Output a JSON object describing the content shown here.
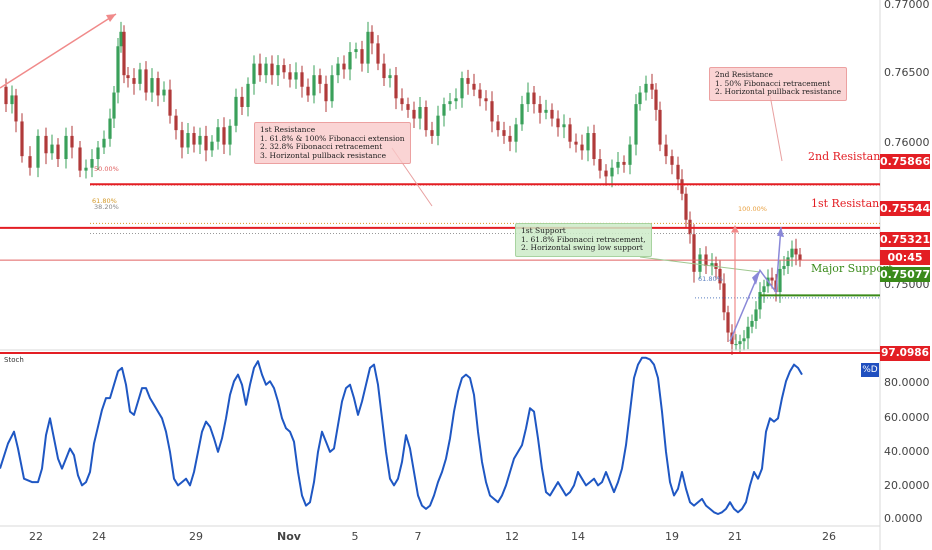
{
  "chart_data": [
    {
      "type": "candlestick",
      "xticks": [
        "22",
        "24",
        "29",
        "Nov",
        "5",
        "7",
        "12",
        "14",
        "19",
        "21",
        "26"
      ],
      "yticks": [
        "0.77000",
        "0.76500",
        "0.76000",
        "0.75500",
        "0.75000"
      ],
      "ylim": [
        0.7472,
        0.7712
      ],
      "grid": false,
      "levels": [
        {
          "name": "2nd Resistance",
          "value": "0.75866",
          "color": "#e31e24"
        },
        {
          "name": "1st Resistance",
          "value": "0.75544",
          "color": "#e31e24"
        },
        {
          "name": "Major Support",
          "value": "0.75077",
          "color": "#3a8a1a"
        }
      ],
      "last_price": "0.75321",
      "countdown": "00:45",
      "fib_labels": [
        "50.00%",
        "61.80%",
        "38.20%",
        "61.80%",
        "100.00%"
      ],
      "annotations": [
        {
          "lines": [
            "2nd Resistance",
            "1. 50% Fibonacci retracement",
            "2. Horizontal pullback resistance"
          ]
        },
        {
          "lines": [
            "1st Resistance",
            "1. 61.8% & 100% Fibonacci extension",
            "2. 32.8% Fibonacci retracement",
            "3. Horizontal pullback resistance"
          ]
        },
        {
          "lines": [
            "1st Support",
            "1. 61.8% Fibonacci retracement,",
            "2. Horizontal swing low support"
          ]
        }
      ],
      "close_path": [
        [
          0,
          0.7652
        ],
        [
          6,
          0.764
        ],
        [
          12,
          0.7646
        ],
        [
          16,
          0.7628
        ],
        [
          22,
          0.7604
        ],
        [
          30,
          0.7596
        ],
        [
          38,
          0.7618
        ],
        [
          46,
          0.7606
        ],
        [
          52,
          0.7612
        ],
        [
          58,
          0.7602
        ],
        [
          66,
          0.7618
        ],
        [
          72,
          0.761
        ],
        [
          80,
          0.7594
        ],
        [
          86,
          0.7596
        ],
        [
          92,
          0.7602
        ],
        [
          98,
          0.761
        ],
        [
          104,
          0.7616
        ],
        [
          110,
          0.763
        ],
        [
          114,
          0.7648
        ],
        [
          118,
          0.768
        ],
        [
          121,
          0.769
        ],
        [
          124,
          0.766
        ],
        [
          128,
          0.7658
        ],
        [
          134,
          0.7654
        ],
        [
          140,
          0.7664
        ],
        [
          146,
          0.7648
        ],
        [
          152,
          0.7658
        ],
        [
          158,
          0.7646
        ],
        [
          164,
          0.765
        ],
        [
          170,
          0.7632
        ],
        [
          176,
          0.7622
        ],
        [
          182,
          0.761
        ],
        [
          188,
          0.762
        ],
        [
          194,
          0.7612
        ],
        [
          200,
          0.7618
        ],
        [
          206,
          0.7608
        ],
        [
          212,
          0.7614
        ],
        [
          218,
          0.7624
        ],
        [
          224,
          0.7612
        ],
        [
          230,
          0.7625
        ],
        [
          236,
          0.7645
        ],
        [
          242,
          0.7638
        ],
        [
          248,
          0.7654
        ],
        [
          254,
          0.7668
        ],
        [
          260,
          0.766
        ],
        [
          266,
          0.7668
        ],
        [
          272,
          0.766
        ],
        [
          278,
          0.7667
        ],
        [
          284,
          0.7662
        ],
        [
          290,
          0.7657
        ],
        [
          296,
          0.7662
        ],
        [
          302,
          0.7652
        ],
        [
          308,
          0.7646
        ],
        [
          314,
          0.766
        ],
        [
          320,
          0.7654
        ],
        [
          326,
          0.7642
        ],
        [
          332,
          0.766
        ],
        [
          338,
          0.7668
        ],
        [
          344,
          0.7664
        ],
        [
          350,
          0.7676
        ],
        [
          356,
          0.7678
        ],
        [
          362,
          0.7668
        ],
        [
          368,
          0.769
        ],
        [
          372,
          0.7682
        ],
        [
          378,
          0.7668
        ],
        [
          384,
          0.7658
        ],
        [
          390,
          0.766
        ],
        [
          396,
          0.7644
        ],
        [
          402,
          0.764
        ],
        [
          408,
          0.7636
        ],
        [
          414,
          0.763
        ],
        [
          420,
          0.7638
        ],
        [
          426,
          0.7622
        ],
        [
          432,
          0.7618
        ],
        [
          438,
          0.7632
        ],
        [
          444,
          0.764
        ],
        [
          450,
          0.7642
        ],
        [
          456,
          0.7644
        ],
        [
          462,
          0.7658
        ],
        [
          468,
          0.7654
        ],
        [
          474,
          0.765
        ],
        [
          480,
          0.7644
        ],
        [
          486,
          0.7642
        ],
        [
          492,
          0.7628
        ],
        [
          498,
          0.7622
        ],
        [
          504,
          0.7618
        ],
        [
          510,
          0.7614
        ],
        [
          516,
          0.7626
        ],
        [
          522,
          0.764
        ],
        [
          528,
          0.7648
        ],
        [
          534,
          0.764
        ],
        [
          540,
          0.7634
        ],
        [
          546,
          0.7636
        ],
        [
          552,
          0.763
        ],
        [
          558,
          0.7624
        ],
        [
          564,
          0.7626
        ],
        [
          570,
          0.7614
        ],
        [
          576,
          0.7612
        ],
        [
          582,
          0.7608
        ],
        [
          588,
          0.762
        ],
        [
          594,
          0.7602
        ],
        [
          600,
          0.7594
        ],
        [
          606,
          0.759
        ],
        [
          612,
          0.7596
        ],
        [
          618,
          0.76
        ],
        [
          624,
          0.7598
        ],
        [
          630,
          0.7612
        ],
        [
          636,
          0.764
        ],
        [
          640,
          0.7648
        ],
        [
          646,
          0.7654
        ],
        [
          652,
          0.765
        ],
        [
          656,
          0.7636
        ],
        [
          660,
          0.7612
        ],
        [
          666,
          0.7604
        ],
        [
          672,
          0.7598
        ],
        [
          678,
          0.7588
        ],
        [
          682,
          0.7578
        ],
        [
          686,
          0.756
        ],
        [
          690,
          0.755
        ],
        [
          694,
          0.7524
        ],
        [
          700,
          0.7536
        ],
        [
          706,
          0.7528
        ],
        [
          712,
          0.753
        ],
        [
          716,
          0.7526
        ],
        [
          720,
          0.7516
        ],
        [
          724,
          0.7496
        ],
        [
          728,
          0.7482
        ],
        [
          732,
          0.7474
        ],
        [
          736,
          0.7474
        ],
        [
          740,
          0.7476
        ],
        [
          744,
          0.7478
        ],
        [
          748,
          0.7486
        ],
        [
          752,
          0.749
        ],
        [
          756,
          0.7498
        ],
        [
          760,
          0.751
        ],
        [
          764,
          0.7514
        ],
        [
          768,
          0.752
        ],
        [
          772,
          0.7518
        ],
        [
          776,
          0.751
        ],
        [
          780,
          0.7526
        ],
        [
          784,
          0.7528
        ],
        [
          788,
          0.7534
        ],
        [
          792,
          0.754
        ],
        [
          796,
          0.7536
        ],
        [
          800,
          0.7532
        ]
      ]
    },
    {
      "type": "line",
      "title": "Stoch",
      "series_label": "%D",
      "yticks": [
        "97.0986",
        "80.0000",
        "60.0000",
        "40.0000",
        "20.0000",
        "0.0000"
      ],
      "ylim": [
        0,
        97.0986
      ],
      "overbought_label": "97.0986",
      "values": [
        [
          0,
          30
        ],
        [
          8,
          45
        ],
        [
          14,
          52
        ],
        [
          18,
          42
        ],
        [
          24,
          24
        ],
        [
          32,
          22
        ],
        [
          38,
          22
        ],
        [
          42,
          30
        ],
        [
          46,
          50
        ],
        [
          50,
          60
        ],
        [
          54,
          48
        ],
        [
          58,
          36
        ],
        [
          62,
          30
        ],
        [
          66,
          36
        ],
        [
          70,
          42
        ],
        [
          74,
          38
        ],
        [
          78,
          26
        ],
        [
          82,
          20
        ],
        [
          86,
          22
        ],
        [
          90,
          28
        ],
        [
          94,
          45
        ],
        [
          98,
          55
        ],
        [
          102,
          65
        ],
        [
          106,
          72
        ],
        [
          110,
          72
        ],
        [
          114,
          80
        ],
        [
          118,
          88
        ],
        [
          122,
          90
        ],
        [
          126,
          80
        ],
        [
          130,
          64
        ],
        [
          134,
          62
        ],
        [
          138,
          70
        ],
        [
          142,
          78
        ],
        [
          146,
          78
        ],
        [
          150,
          72
        ],
        [
          154,
          68
        ],
        [
          158,
          64
        ],
        [
          162,
          60
        ],
        [
          166,
          52
        ],
        [
          170,
          40
        ],
        [
          174,
          24
        ],
        [
          178,
          20
        ],
        [
          182,
          22
        ],
        [
          186,
          24
        ],
        [
          190,
          20
        ],
        [
          194,
          28
        ],
        [
          198,
          40
        ],
        [
          202,
          52
        ],
        [
          206,
          58
        ],
        [
          210,
          55
        ],
        [
          214,
          48
        ],
        [
          218,
          40
        ],
        [
          222,
          48
        ],
        [
          226,
          60
        ],
        [
          230,
          74
        ],
        [
          234,
          82
        ],
        [
          238,
          86
        ],
        [
          242,
          80
        ],
        [
          246,
          68
        ],
        [
          250,
          80
        ],
        [
          254,
          90
        ],
        [
          258,
          94
        ],
        [
          262,
          86
        ],
        [
          266,
          80
        ],
        [
          270,
          82
        ],
        [
          274,
          78
        ],
        [
          278,
          70
        ],
        [
          282,
          60
        ],
        [
          286,
          54
        ],
        [
          290,
          52
        ],
        [
          294,
          46
        ],
        [
          298,
          28
        ],
        [
          302,
          14
        ],
        [
          306,
          8
        ],
        [
          310,
          10
        ],
        [
          314,
          22
        ],
        [
          318,
          40
        ],
        [
          322,
          52
        ],
        [
          326,
          46
        ],
        [
          330,
          40
        ],
        [
          334,
          42
        ],
        [
          338,
          56
        ],
        [
          342,
          70
        ],
        [
          346,
          78
        ],
        [
          350,
          80
        ],
        [
          354,
          72
        ],
        [
          358,
          62
        ],
        [
          362,
          70
        ],
        [
          366,
          80
        ],
        [
          370,
          90
        ],
        [
          374,
          92
        ],
        [
          378,
          80
        ],
        [
          382,
          60
        ],
        [
          386,
          40
        ],
        [
          390,
          24
        ],
        [
          394,
          20
        ],
        [
          398,
          24
        ],
        [
          402,
          34
        ],
        [
          406,
          50
        ],
        [
          410,
          42
        ],
        [
          414,
          28
        ],
        [
          418,
          14
        ],
        [
          422,
          8
        ],
        [
          426,
          6
        ],
        [
          430,
          8
        ],
        [
          434,
          14
        ],
        [
          438,
          22
        ],
        [
          442,
          28
        ],
        [
          446,
          36
        ],
        [
          450,
          48
        ],
        [
          454,
          64
        ],
        [
          458,
          76
        ],
        [
          462,
          84
        ],
        [
          466,
          86
        ],
        [
          470,
          84
        ],
        [
          474,
          74
        ],
        [
          478,
          52
        ],
        [
          482,
          34
        ],
        [
          486,
          22
        ],
        [
          490,
          14
        ],
        [
          494,
          12
        ],
        [
          498,
          10
        ],
        [
          502,
          14
        ],
        [
          506,
          20
        ],
        [
          510,
          28
        ],
        [
          514,
          36
        ],
        [
          518,
          40
        ],
        [
          522,
          44
        ],
        [
          526,
          54
        ],
        [
          530,
          66
        ],
        [
          534,
          64
        ],
        [
          538,
          48
        ],
        [
          542,
          30
        ],
        [
          546,
          16
        ],
        [
          550,
          14
        ],
        [
          554,
          18
        ],
        [
          558,
          22
        ],
        [
          562,
          18
        ],
        [
          566,
          14
        ],
        [
          570,
          16
        ],
        [
          574,
          20
        ],
        [
          578,
          28
        ],
        [
          582,
          24
        ],
        [
          586,
          20
        ],
        [
          590,
          22
        ],
        [
          594,
          24
        ],
        [
          598,
          20
        ],
        [
          602,
          22
        ],
        [
          606,
          28
        ],
        [
          610,
          22
        ],
        [
          614,
          16
        ],
        [
          618,
          22
        ],
        [
          622,
          30
        ],
        [
          626,
          44
        ],
        [
          630,
          64
        ],
        [
          634,
          84
        ],
        [
          638,
          92
        ],
        [
          642,
          96
        ],
        [
          646,
          96
        ],
        [
          650,
          95
        ],
        [
          654,
          92
        ],
        [
          658,
          84
        ],
        [
          662,
          64
        ],
        [
          666,
          40
        ],
        [
          670,
          22
        ],
        [
          674,
          14
        ],
        [
          678,
          18
        ],
        [
          682,
          28
        ],
        [
          686,
          18
        ],
        [
          690,
          10
        ],
        [
          694,
          8
        ],
        [
          698,
          10
        ],
        [
          702,
          12
        ],
        [
          706,
          8
        ],
        [
          710,
          6
        ],
        [
          714,
          4
        ],
        [
          718,
          3
        ],
        [
          722,
          4
        ],
        [
          726,
          6
        ],
        [
          730,
          10
        ],
        [
          734,
          6
        ],
        [
          738,
          4
        ],
        [
          742,
          6
        ],
        [
          746,
          10
        ],
        [
          750,
          20
        ],
        [
          754,
          28
        ],
        [
          758,
          24
        ],
        [
          762,
          30
        ],
        [
          766,
          52
        ],
        [
          770,
          60
        ],
        [
          774,
          58
        ],
        [
          778,
          60
        ],
        [
          782,
          72
        ],
        [
          786,
          82
        ],
        [
          790,
          88
        ],
        [
          794,
          92
        ],
        [
          798,
          90
        ],
        [
          802,
          86
        ]
      ]
    }
  ]
}
